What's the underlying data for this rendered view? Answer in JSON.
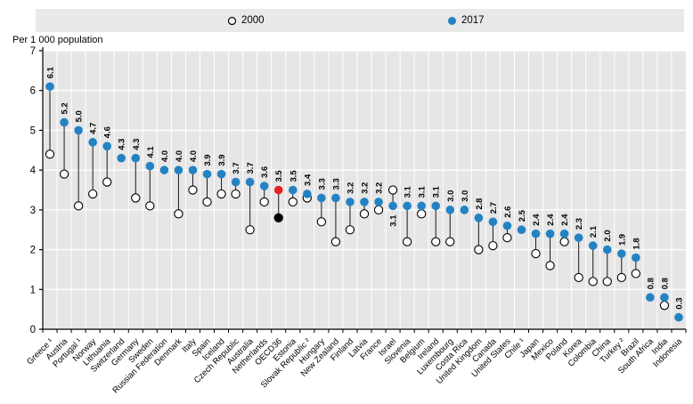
{
  "legend": {
    "series_2000_label": "2000",
    "series_2017_label": "2017"
  },
  "colors": {
    "dot_2017": "#2382c3",
    "dot_2000_fill": "#ffffff",
    "marker_stroke": "#000000",
    "stem": "#1a1a1a",
    "highlight_2017": "#e0231f",
    "highlight_2000": "#000000",
    "plot_bg": "#e6e6e6",
    "legend_bg": "#e9e9e9",
    "grid": "#ffffff",
    "axis": "#000000"
  },
  "chart_data": {
    "type": "scatter",
    "subtype": "dumbbell-dot-plot",
    "title": "",
    "ylabel": "Per 1 000 population",
    "ylim": [
      0,
      7
    ],
    "y_ticks": [
      0,
      1,
      2,
      3,
      4,
      5,
      6,
      7
    ],
    "grid": true,
    "legend_position": "top",
    "categories": [
      "Greece ¹",
      "Austria",
      "Portugal ¹",
      "Norway",
      "Lithuania",
      "Switzerland",
      "Germany",
      "Sweden",
      "Russian Federation",
      "Denmark",
      "Italy",
      "Spain",
      "Iceland",
      "Czech Republic",
      "Australia",
      "Netherlands",
      "OECD36",
      "Estonia",
      "Slovak Republic ²",
      "Hungary",
      "New Zealand",
      "Finland",
      "Latvia",
      "France",
      "Israel",
      "Slovenia",
      "Belgium",
      "Ireland",
      "Luxembourg",
      "Costa Rica",
      "United Kingdom",
      "Canada",
      "United States",
      "Chile ¹",
      "Japan",
      "Mexico",
      "Poland",
      "Korea",
      "Colombia",
      "China",
      "Turkey ²",
      "Brazil",
      "South Africa",
      "India",
      "Indonesia"
    ],
    "series": [
      {
        "name": "2000",
        "marker": "open-circle",
        "values": [
          4.4,
          3.9,
          3.1,
          3.4,
          3.7,
          null,
          3.3,
          3.1,
          null,
          2.9,
          3.5,
          3.2,
          3.4,
          3.4,
          2.5,
          3.2,
          2.8,
          3.2,
          3.3,
          2.7,
          2.2,
          2.5,
          2.9,
          3.0,
          3.5,
          2.2,
          2.9,
          2.2,
          2.2,
          null,
          2.0,
          2.1,
          2.3,
          null,
          1.9,
          1.6,
          2.2,
          1.3,
          1.2,
          1.2,
          1.3,
          1.4,
          null,
          0.6,
          null
        ]
      },
      {
        "name": "2017",
        "marker": "filled-circle",
        "values": [
          6.1,
          5.2,
          5.0,
          4.7,
          4.6,
          4.3,
          4.3,
          4.1,
          4.0,
          4.0,
          4.0,
          3.9,
          3.9,
          3.7,
          3.7,
          3.6,
          3.5,
          3.5,
          3.4,
          3.3,
          3.3,
          3.2,
          3.2,
          3.2,
          3.1,
          3.1,
          3.1,
          3.1,
          3.0,
          3.0,
          2.8,
          2.7,
          2.6,
          2.5,
          2.4,
          2.4,
          2.4,
          2.3,
          2.1,
          2.0,
          1.9,
          1.8,
          0.8,
          0.8,
          0.3
        ]
      }
    ],
    "value_labels": "2017 series, one decimal, rotated vertical above markers",
    "highlight_category": "OECD36",
    "label_below_categories": [
      "Israel"
    ]
  }
}
